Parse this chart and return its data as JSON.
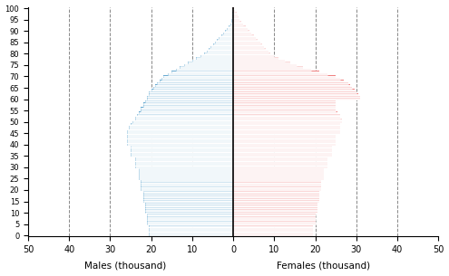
{
  "male_label": "Males (thousand)",
  "female_label": "Females (thousand)",
  "xlim": 50,
  "xticks": [
    -50,
    -40,
    -30,
    -20,
    -10,
    0,
    10,
    20,
    30,
    40,
    50
  ],
  "xtick_labels": [
    "50",
    "40",
    "30",
    "20",
    "10",
    "0",
    "10",
    "20",
    "30",
    "40",
    "50"
  ],
  "yticks": [
    0,
    5,
    10,
    15,
    20,
    25,
    30,
    35,
    40,
    45,
    50,
    55,
    60,
    65,
    70,
    75,
    80,
    85,
    90,
    95,
    100
  ],
  "bar_height": 0.9,
  "male_color": "#6aabd2",
  "female_color": "#f08080",
  "background_color": "#ffffff",
  "grid_color": "#888888",
  "ages": [
    0,
    1,
    2,
    3,
    4,
    5,
    6,
    7,
    8,
    9,
    10,
    11,
    12,
    13,
    14,
    15,
    16,
    17,
    18,
    19,
    20,
    21,
    22,
    23,
    24,
    25,
    26,
    27,
    28,
    29,
    30,
    31,
    32,
    33,
    34,
    35,
    36,
    37,
    38,
    39,
    40,
    41,
    42,
    43,
    44,
    45,
    46,
    47,
    48,
    49,
    50,
    51,
    52,
    53,
    54,
    55,
    56,
    57,
    58,
    59,
    60,
    61,
    62,
    63,
    64,
    65,
    66,
    67,
    68,
    69,
    70,
    71,
    72,
    73,
    74,
    75,
    76,
    77,
    78,
    79,
    80,
    81,
    82,
    83,
    84,
    85,
    86,
    87,
    88,
    89,
    90,
    91,
    92,
    93,
    94,
    95,
    96,
    97,
    98,
    99,
    100
  ],
  "males": [
    20.5,
    20.5,
    20.5,
    20.5,
    20.5,
    21.0,
    21.0,
    21.0,
    21.0,
    21.0,
    21.5,
    21.5,
    21.5,
    21.5,
    21.5,
    22.0,
    22.0,
    22.0,
    22.0,
    22.0,
    22.5,
    22.5,
    22.5,
    22.5,
    22.5,
    23.0,
    23.0,
    23.0,
    23.0,
    23.0,
    24.0,
    24.0,
    24.0,
    24.0,
    24.0,
    25.0,
    25.0,
    25.0,
    25.0,
    25.0,
    26.0,
    26.0,
    26.0,
    26.0,
    26.0,
    26.0,
    26.0,
    25.5,
    25.5,
    25.0,
    24.5,
    24.0,
    24.0,
    23.5,
    23.0,
    22.5,
    22.5,
    22.0,
    22.0,
    21.5,
    21.0,
    21.0,
    20.5,
    20.5,
    20.0,
    19.5,
    19.0,
    18.5,
    18.0,
    17.5,
    17.0,
    16.0,
    15.0,
    14.0,
    13.0,
    12.0,
    11.0,
    10.0,
    9.0,
    8.0,
    7.0,
    6.5,
    6.0,
    5.5,
    5.0,
    4.5,
    4.0,
    3.5,
    3.0,
    2.5,
    2.0,
    1.5,
    1.2,
    0.8,
    0.5,
    0.4,
    0.3,
    0.2,
    0.15,
    0.1,
    0.05
  ],
  "females": [
    19.5,
    19.5,
    19.5,
    19.5,
    19.5,
    20.0,
    20.0,
    20.0,
    20.0,
    20.0,
    20.5,
    20.5,
    20.5,
    20.5,
    20.5,
    21.0,
    21.0,
    21.0,
    21.0,
    21.0,
    21.5,
    21.5,
    21.5,
    21.5,
    21.5,
    22.0,
    22.0,
    22.0,
    22.0,
    22.0,
    23.0,
    23.0,
    23.0,
    23.0,
    23.0,
    24.0,
    24.0,
    24.0,
    24.0,
    24.0,
    25.0,
    25.0,
    25.0,
    25.0,
    25.0,
    26.0,
    26.0,
    26.0,
    26.0,
    26.0,
    26.5,
    26.5,
    26.0,
    26.0,
    25.5,
    25.0,
    25.0,
    25.0,
    25.0,
    25.0,
    31.0,
    31.0,
    30.5,
    30.0,
    29.5,
    29.0,
    28.5,
    28.0,
    27.0,
    26.0,
    25.0,
    23.0,
    21.0,
    19.0,
    17.0,
    15.5,
    14.0,
    12.5,
    11.0,
    10.0,
    9.0,
    8.5,
    8.0,
    7.5,
    7.0,
    6.5,
    6.0,
    5.5,
    5.0,
    4.5,
    4.0,
    3.5,
    3.0,
    2.5,
    2.0,
    1.5,
    1.2,
    1.0,
    0.8,
    0.5,
    0.3
  ]
}
